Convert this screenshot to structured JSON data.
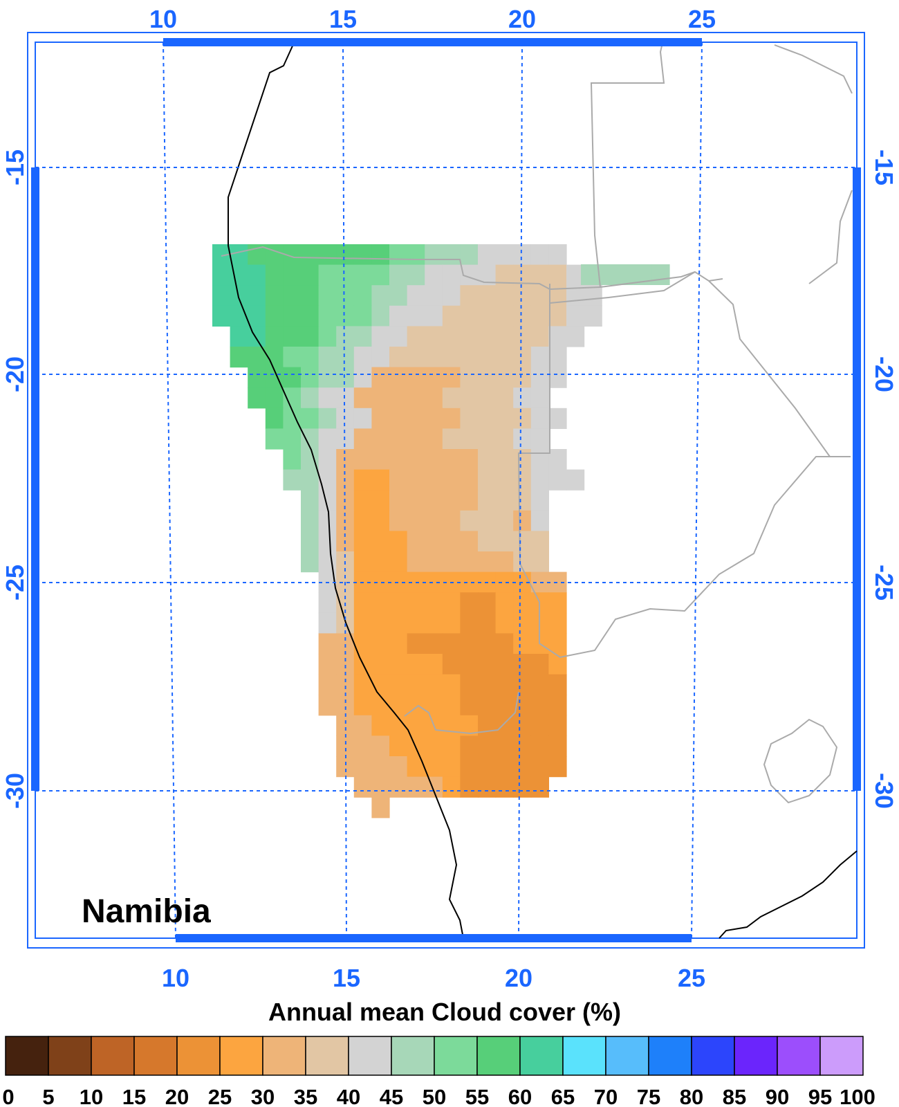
{
  "map": {
    "title": "Namibia",
    "top_lon_ticks": [
      "10",
      "15",
      "20",
      "25"
    ],
    "bottom_lon_ticks": [
      "10",
      "15",
      "20",
      "25"
    ],
    "left_lat_ticks": [
      "-15",
      "-20",
      "-25",
      "-30"
    ],
    "right_lat_ticks": [
      "-15",
      "-20",
      "-25",
      "-30"
    ],
    "axis_color": "#1a66ff",
    "coastline_color": "#000000",
    "border_color": "#aaaaaa"
  },
  "colorbar": {
    "title": "Annual mean Cloud cover (%)",
    "labels": [
      "0",
      "5",
      "10",
      "15",
      "20",
      "25",
      "30",
      "35",
      "40",
      "45",
      "50",
      "55",
      "60",
      "65",
      "70",
      "75",
      "80",
      "85",
      "90",
      "95",
      "100"
    ],
    "colors": [
      "#45220e",
      "#7f4119",
      "#be6426",
      "#d6782c",
      "#ec9236",
      "#fca540",
      "#eeb478",
      "#e2c6a4",
      "#d3d3d3",
      "#a7d7b8",
      "#7cda9a",
      "#57cf79",
      "#47cf9d",
      "#5ae2fc",
      "#57bdfb",
      "#1e80fa",
      "#2c45fc",
      "#6b25fc",
      "#9c4efc",
      "#cc9cfb"
    ]
  }
}
